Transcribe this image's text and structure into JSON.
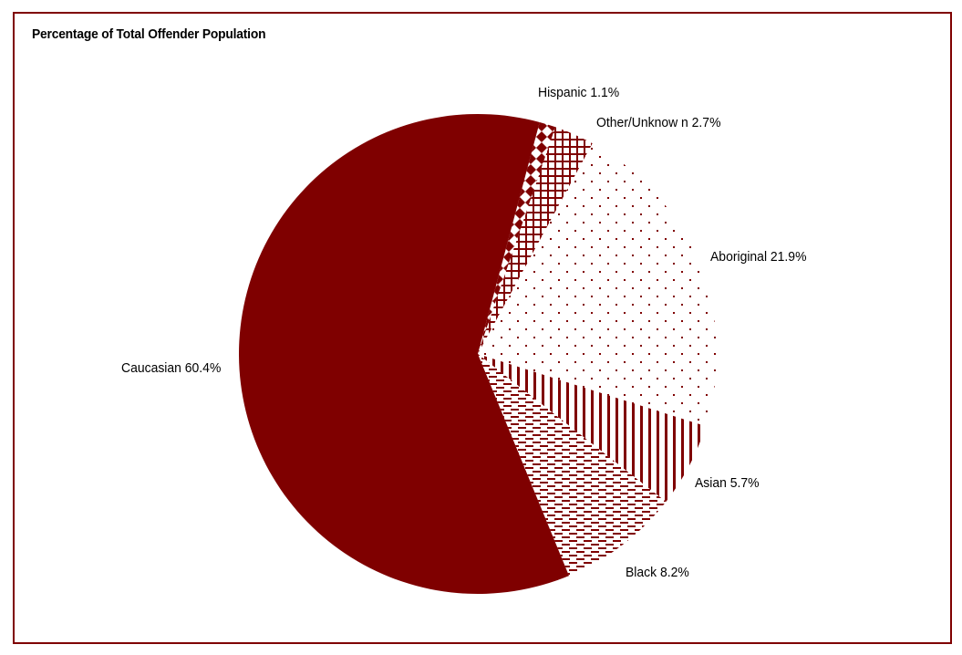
{
  "chart_data": {
    "type": "pie",
    "title": "Percentage of Total Offender Population",
    "start_angle_deg": 15,
    "direction": "clockwise",
    "legend": "none (data labels outside slices)",
    "slices": [
      {
        "label": "Hispanic",
        "value": 1.1,
        "display": "Hispanic 1.1%",
        "pattern": "diamond-grid"
      },
      {
        "label": "Other/Unknown",
        "value": 2.7,
        "display": "Other/Unknow n 2.7%",
        "pattern": "cross-hatch"
      },
      {
        "label": "Aboriginal",
        "value": 21.9,
        "display": "Aboriginal 21.9%",
        "pattern": "dots"
      },
      {
        "label": "Asian",
        "value": 5.7,
        "display": "Asian 5.7%",
        "pattern": "vertical-lines"
      },
      {
        "label": "Black",
        "value": 8.2,
        "display": "Black 8.2%",
        "pattern": "horizontal-dashes"
      },
      {
        "label": "Caucasian",
        "value": 60.4,
        "display": "Caucasian 60.4%",
        "pattern": "solid"
      }
    ]
  },
  "colors": {
    "accent": "#7f0000",
    "background": "#ffffff",
    "text": "#000000"
  }
}
